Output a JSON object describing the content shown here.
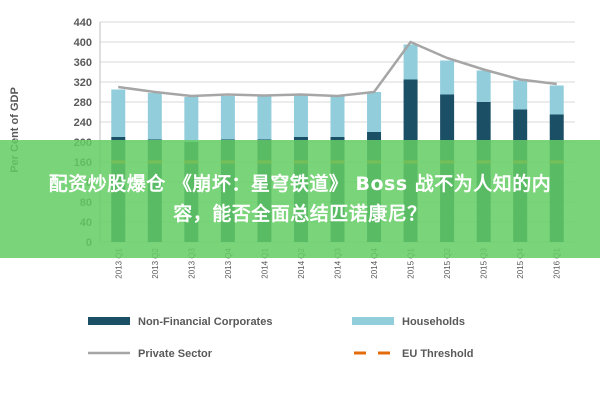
{
  "banner": {
    "text": "配资炒股爆仓 《崩坏：星穹铁道》 Boss 战不为人知的内容，能否全面总结匹诺康尼？"
  },
  "chart_data": {
    "type": "bar",
    "title": "",
    "xlabel": "",
    "ylabel": "Per Cent of GDP",
    "ylim": [
      0,
      440
    ],
    "yticks": [
      0,
      40,
      80,
      120,
      160,
      200,
      240,
      280,
      320,
      360,
      400,
      440
    ],
    "grid": true,
    "legend_position": "bottom",
    "categories": [
      "2013 Q1",
      "2013 Q2",
      "2013 Q3",
      "2013 Q4",
      "2014 Q1",
      "2014 Q2",
      "2014 Q3",
      "2014 Q4",
      "2015 Q1",
      "2015 Q2",
      "2015 Q3",
      "2015 Q4",
      "2016 Q1"
    ],
    "series": [
      {
        "name": "Non-Financial Corporates",
        "kind": "bar",
        "color": "#1b4f66",
        "values": [
          210,
          205,
          200,
          205,
          205,
          210,
          210,
          220,
          325,
          295,
          280,
          265,
          255
        ]
      },
      {
        "name": "Households",
        "kind": "bar",
        "color": "#92cddc",
        "values": [
          95,
          93,
          90,
          87,
          88,
          85,
          82,
          80,
          70,
          68,
          63,
          58,
          58
        ]
      },
      {
        "name": "Private Sector",
        "kind": "line",
        "color": "#a6a6a6",
        "values": [
          310,
          300,
          292,
          295,
          293,
          295,
          292,
          300,
          400,
          368,
          345,
          325,
          316
        ]
      },
      {
        "name": "EU Threshold",
        "kind": "threshold",
        "color": "#e46c0a",
        "values": [
          160,
          160,
          160,
          160,
          160,
          160,
          160,
          160,
          160,
          160,
          160,
          160,
          160
        ]
      }
    ]
  }
}
